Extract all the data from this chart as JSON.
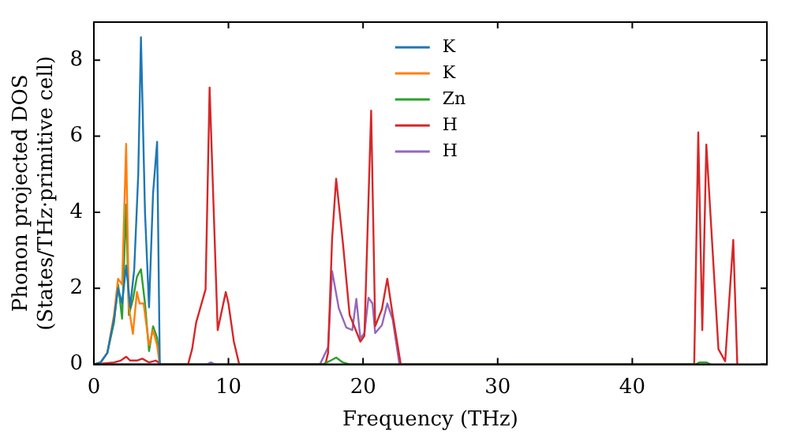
{
  "chart_data": {
    "type": "line",
    "xlabel": "Frequency (THz)",
    "ylabel": "Phonon projected DOS\n(States/THz·primitive cell)",
    "xlim": [
      0,
      50
    ],
    "ylim": [
      0,
      9
    ],
    "xticks": [
      0,
      10,
      20,
      30,
      40
    ],
    "yticks": [
      0,
      2,
      4,
      6,
      8
    ],
    "grid": false,
    "legend": "top",
    "marker": "none",
    "series": [
      {
        "name": "K",
        "color": "#1f77b4",
        "x": [
          0,
          0.5,
          1.0,
          1.5,
          1.8,
          2.1,
          2.4,
          2.7,
          3.0,
          3.3,
          3.5,
          3.8,
          4.1,
          4.4,
          4.7,
          4.9
        ],
        "values": [
          0,
          0.05,
          0.3,
          1.2,
          2.0,
          1.6,
          2.6,
          1.5,
          2.5,
          5.0,
          8.6,
          4.0,
          1.5,
          4.5,
          5.85,
          0
        ]
      },
      {
        "name": "K",
        "color": "#ff7f0e",
        "x": [
          0,
          0.5,
          1.0,
          1.5,
          1.8,
          2.1,
          2.4,
          2.6,
          2.9,
          3.2,
          3.4,
          3.7,
          4.1,
          4.4,
          4.7,
          4.9
        ],
        "values": [
          0,
          0.05,
          0.3,
          1.3,
          2.25,
          2.1,
          5.8,
          1.5,
          0.8,
          1.9,
          1.6,
          1.6,
          0.5,
          0.9,
          0.5,
          0
        ]
      },
      {
        "name": "Zn",
        "color": "#2ca02c",
        "x": [
          0,
          0.5,
          1.0,
          1.5,
          1.8,
          2.1,
          2.4,
          2.6,
          2.9,
          3.2,
          3.5,
          3.8,
          4.1,
          4.4,
          4.7,
          4.9,
          17.0,
          17.6,
          18.0,
          18.5,
          19.0,
          44.7,
          45.0,
          45.5,
          45.8
        ],
        "values": [
          0,
          0.05,
          0.3,
          1.1,
          2.1,
          1.2,
          4.2,
          1.3,
          1.7,
          2.3,
          2.5,
          1.6,
          0.35,
          1.0,
          0.7,
          0,
          0,
          0.1,
          0.18,
          0.05,
          0,
          0,
          0.05,
          0.05,
          0
        ]
      },
      {
        "name": "H",
        "color": "#d62728",
        "x": [
          0,
          1.5,
          2.0,
          2.4,
          2.7,
          3.2,
          3.6,
          4.1,
          4.6,
          5.0,
          7.0,
          7.3,
          7.6,
          8.3,
          8.6,
          9.2,
          9.8,
          10.0,
          10.4,
          10.8,
          17.2,
          17.4,
          17.7,
          18.0,
          18.5,
          19.0,
          19.8,
          20.1,
          20.6,
          20.9,
          21.4,
          21.8,
          22.2,
          22.8,
          44.6,
          44.9,
          45.2,
          45.5,
          46.4,
          46.9,
          47.5,
          47.8
        ],
        "values": [
          0,
          0.05,
          0.1,
          0.2,
          0.1,
          0.1,
          0.15,
          0.05,
          0.1,
          0,
          0,
          0.4,
          1.1,
          1.97,
          7.28,
          0.9,
          1.9,
          1.6,
          0.6,
          0,
          0,
          0.3,
          3.3,
          4.88,
          3.2,
          1.3,
          0.6,
          0.75,
          6.67,
          1.0,
          1.45,
          2.25,
          1.3,
          0,
          0,
          6.1,
          0.9,
          5.78,
          0.4,
          0.08,
          3.27,
          0
        ]
      },
      {
        "name": "H",
        "color": "#9467bd",
        "x": [
          0,
          8.4,
          8.7,
          9.0,
          16.8,
          17.4,
          17.7,
          18.2,
          18.75,
          19.2,
          19.5,
          19.8,
          20.1,
          20.4,
          20.7,
          20.9,
          21.4,
          21.8,
          22.2,
          22.7
        ],
        "values": [
          0,
          0,
          0.05,
          0,
          0,
          0.45,
          2.45,
          1.47,
          0.97,
          0.9,
          1.72,
          0.68,
          0.82,
          1.75,
          1.6,
          0.82,
          1.03,
          1.6,
          1.18,
          0
        ]
      }
    ]
  }
}
